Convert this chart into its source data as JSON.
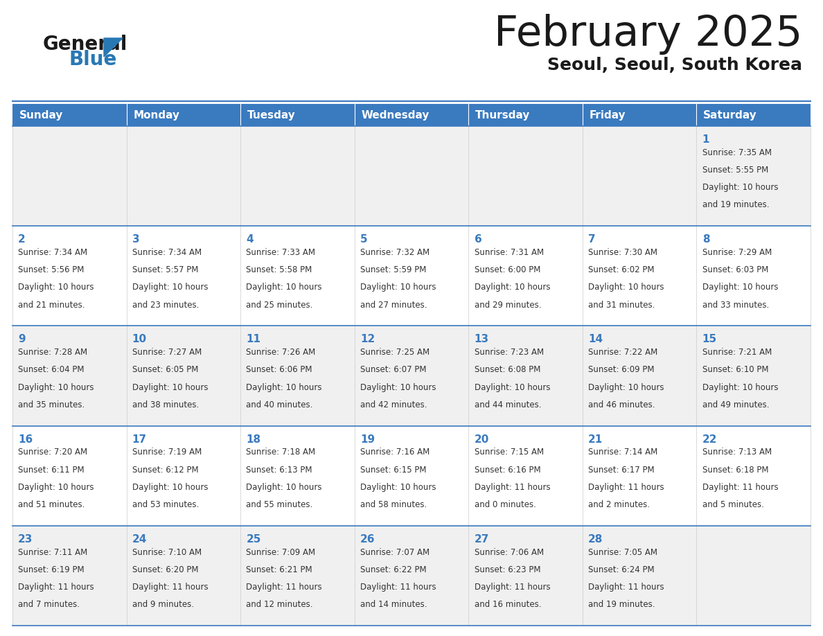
{
  "title": "February 2025",
  "subtitle": "Seoul, Seoul, South Korea",
  "days_of_week": [
    "Sunday",
    "Monday",
    "Tuesday",
    "Wednesday",
    "Thursday",
    "Friday",
    "Saturday"
  ],
  "header_bg": "#3a7abf",
  "header_text_color": "#ffffff",
  "cell_bg_odd": "#f0f0f0",
  "cell_bg_even": "#ffffff",
  "cell_border_top_color": "#3a7abf",
  "day_num_color": "#3a7abf",
  "text_color": "#333333",
  "title_color": "#1a1a1a",
  "subtitle_color": "#1a1a1a",
  "logo_general_color": "#1a1a1a",
  "logo_blue_color": "#2878b4",
  "logo_triangle_color": "#2878b4",
  "calendar_data": [
    [
      null,
      null,
      null,
      null,
      null,
      null,
      {
        "day": 1,
        "sunrise": "7:35 AM",
        "sunset": "5:55 PM",
        "daylight_line1": "Daylight: 10 hours",
        "daylight_line2": "and 19 minutes."
      }
    ],
    [
      {
        "day": 2,
        "sunrise": "7:34 AM",
        "sunset": "5:56 PM",
        "daylight_line1": "Daylight: 10 hours",
        "daylight_line2": "and 21 minutes."
      },
      {
        "day": 3,
        "sunrise": "7:34 AM",
        "sunset": "5:57 PM",
        "daylight_line1": "Daylight: 10 hours",
        "daylight_line2": "and 23 minutes."
      },
      {
        "day": 4,
        "sunrise": "7:33 AM",
        "sunset": "5:58 PM",
        "daylight_line1": "Daylight: 10 hours",
        "daylight_line2": "and 25 minutes."
      },
      {
        "day": 5,
        "sunrise": "7:32 AM",
        "sunset": "5:59 PM",
        "daylight_line1": "Daylight: 10 hours",
        "daylight_line2": "and 27 minutes."
      },
      {
        "day": 6,
        "sunrise": "7:31 AM",
        "sunset": "6:00 PM",
        "daylight_line1": "Daylight: 10 hours",
        "daylight_line2": "and 29 minutes."
      },
      {
        "day": 7,
        "sunrise": "7:30 AM",
        "sunset": "6:02 PM",
        "daylight_line1": "Daylight: 10 hours",
        "daylight_line2": "and 31 minutes."
      },
      {
        "day": 8,
        "sunrise": "7:29 AM",
        "sunset": "6:03 PM",
        "daylight_line1": "Daylight: 10 hours",
        "daylight_line2": "and 33 minutes."
      }
    ],
    [
      {
        "day": 9,
        "sunrise": "7:28 AM",
        "sunset": "6:04 PM",
        "daylight_line1": "Daylight: 10 hours",
        "daylight_line2": "and 35 minutes."
      },
      {
        "day": 10,
        "sunrise": "7:27 AM",
        "sunset": "6:05 PM",
        "daylight_line1": "Daylight: 10 hours",
        "daylight_line2": "and 38 minutes."
      },
      {
        "day": 11,
        "sunrise": "7:26 AM",
        "sunset": "6:06 PM",
        "daylight_line1": "Daylight: 10 hours",
        "daylight_line2": "and 40 minutes."
      },
      {
        "day": 12,
        "sunrise": "7:25 AM",
        "sunset": "6:07 PM",
        "daylight_line1": "Daylight: 10 hours",
        "daylight_line2": "and 42 minutes."
      },
      {
        "day": 13,
        "sunrise": "7:23 AM",
        "sunset": "6:08 PM",
        "daylight_line1": "Daylight: 10 hours",
        "daylight_line2": "and 44 minutes."
      },
      {
        "day": 14,
        "sunrise": "7:22 AM",
        "sunset": "6:09 PM",
        "daylight_line1": "Daylight: 10 hours",
        "daylight_line2": "and 46 minutes."
      },
      {
        "day": 15,
        "sunrise": "7:21 AM",
        "sunset": "6:10 PM",
        "daylight_line1": "Daylight: 10 hours",
        "daylight_line2": "and 49 minutes."
      }
    ],
    [
      {
        "day": 16,
        "sunrise": "7:20 AM",
        "sunset": "6:11 PM",
        "daylight_line1": "Daylight: 10 hours",
        "daylight_line2": "and 51 minutes."
      },
      {
        "day": 17,
        "sunrise": "7:19 AM",
        "sunset": "6:12 PM",
        "daylight_line1": "Daylight: 10 hours",
        "daylight_line2": "and 53 minutes."
      },
      {
        "day": 18,
        "sunrise": "7:18 AM",
        "sunset": "6:13 PM",
        "daylight_line1": "Daylight: 10 hours",
        "daylight_line2": "and 55 minutes."
      },
      {
        "day": 19,
        "sunrise": "7:16 AM",
        "sunset": "6:15 PM",
        "daylight_line1": "Daylight: 10 hours",
        "daylight_line2": "and 58 minutes."
      },
      {
        "day": 20,
        "sunrise": "7:15 AM",
        "sunset": "6:16 PM",
        "daylight_line1": "Daylight: 11 hours",
        "daylight_line2": "and 0 minutes."
      },
      {
        "day": 21,
        "sunrise": "7:14 AM",
        "sunset": "6:17 PM",
        "daylight_line1": "Daylight: 11 hours",
        "daylight_line2": "and 2 minutes."
      },
      {
        "day": 22,
        "sunrise": "7:13 AM",
        "sunset": "6:18 PM",
        "daylight_line1": "Daylight: 11 hours",
        "daylight_line2": "and 5 minutes."
      }
    ],
    [
      {
        "day": 23,
        "sunrise": "7:11 AM",
        "sunset": "6:19 PM",
        "daylight_line1": "Daylight: 11 hours",
        "daylight_line2": "and 7 minutes."
      },
      {
        "day": 24,
        "sunrise": "7:10 AM",
        "sunset": "6:20 PM",
        "daylight_line1": "Daylight: 11 hours",
        "daylight_line2": "and 9 minutes."
      },
      {
        "day": 25,
        "sunrise": "7:09 AM",
        "sunset": "6:21 PM",
        "daylight_line1": "Daylight: 11 hours",
        "daylight_line2": "and 12 minutes."
      },
      {
        "day": 26,
        "sunrise": "7:07 AM",
        "sunset": "6:22 PM",
        "daylight_line1": "Daylight: 11 hours",
        "daylight_line2": "and 14 minutes."
      },
      {
        "day": 27,
        "sunrise": "7:06 AM",
        "sunset": "6:23 PM",
        "daylight_line1": "Daylight: 11 hours",
        "daylight_line2": "and 16 minutes."
      },
      {
        "day": 28,
        "sunrise": "7:05 AM",
        "sunset": "6:24 PM",
        "daylight_line1": "Daylight: 11 hours",
        "daylight_line2": "and 19 minutes."
      },
      null
    ]
  ]
}
